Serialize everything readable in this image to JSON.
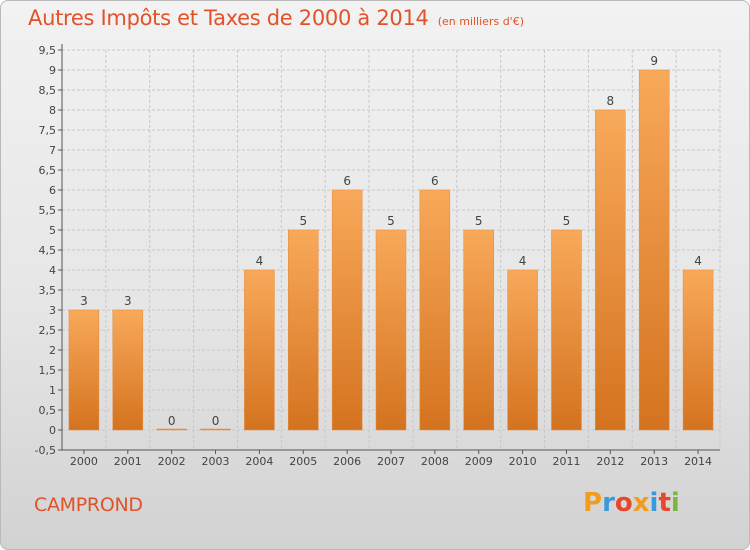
{
  "header": {
    "title": "Autres Impôts et Taxes de 2000 à 2014",
    "subtitle": "(en milliers d'€)"
  },
  "footer": {
    "commune": "CAMPROND",
    "logo_text": "Proxiti"
  },
  "colors": {
    "title": "#e0532a",
    "bar_top": "#f8a95a",
    "bar_bottom": "#d4731f",
    "logo": [
      "#f39c1c",
      "#3a9ad9",
      "#e8462a",
      "#f39c1c",
      "#3a9ad9",
      "#e8462a",
      "#7ab83a"
    ]
  },
  "chart_data": {
    "type": "bar",
    "categories": [
      "2000",
      "2001",
      "2002",
      "2003",
      "2004",
      "2005",
      "2006",
      "2007",
      "2008",
      "2009",
      "2010",
      "2011",
      "2012",
      "2013",
      "2014"
    ],
    "values": [
      3,
      3,
      0,
      0,
      4,
      5,
      6,
      5,
      6,
      5,
      4,
      5,
      8,
      9,
      4
    ],
    "data_labels": [
      "3",
      "3",
      "0",
      "0",
      "4",
      "5",
      "6",
      "5",
      "6",
      "5",
      "4",
      "5",
      "8",
      "9",
      "4"
    ],
    "yticks": [
      "-0,5",
      "0",
      "0,5",
      "1",
      "1,5",
      "2",
      "2,5",
      "3",
      "3,5",
      "4",
      "4,5",
      "5",
      "5,5",
      "6",
      "6,5",
      "7",
      "7,5",
      "8",
      "8,5",
      "9",
      "9,5"
    ],
    "ylim": [
      -0.5,
      9.5
    ],
    "grid": true
  }
}
